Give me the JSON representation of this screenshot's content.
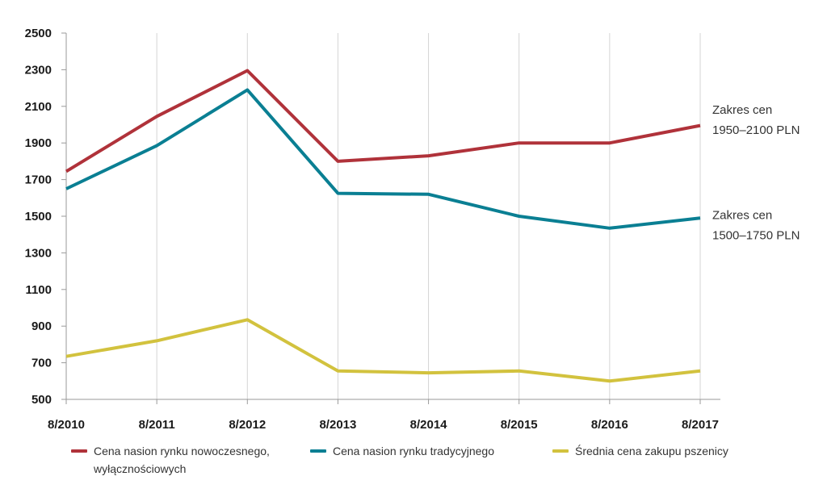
{
  "chart_data": {
    "type": "line",
    "categories": [
      "8/2010",
      "8/2011",
      "8/2012",
      "8/2013",
      "8/2014",
      "8/2015",
      "8/2016",
      "8/2017"
    ],
    "ylim": [
      500,
      2500
    ],
    "yticks": [
      500,
      700,
      900,
      1100,
      1300,
      1500,
      1700,
      1900,
      2100,
      2300,
      2500
    ],
    "ytick_labels": [
      "500",
      "700",
      "900",
      "1100",
      "1300",
      "1500",
      "1700",
      "1900",
      "2100",
      "2300",
      "2500"
    ],
    "grid": "vertical",
    "legend_position": "bottom",
    "series": [
      {
        "name": "Cena nasion rynku nowoczesnego, wyłącznościowych",
        "color": "#b0323a",
        "values": [
          1745,
          2045,
          2295,
          1800,
          1830,
          1900,
          1900,
          1995
        ]
      },
      {
        "name": "Cena nasion rynku tradycyjnego",
        "color": "#0a7f93",
        "values": [
          1650,
          1885,
          2190,
          1625,
          1620,
          1500,
          1435,
          1490
        ]
      },
      {
        "name": "Średnia cena zakupu pszenicy",
        "color": "#d2c23e",
        "values": [
          735,
          820,
          935,
          655,
          645,
          655,
          600,
          655
        ]
      }
    ],
    "annotations": [
      {
        "lines": [
          "Zakres cen",
          "1950–2100 PLN"
        ],
        "y_value": 2025
      },
      {
        "lines": [
          "Zakres cen",
          "1500–1750 PLN"
        ],
        "y_value": 1450
      }
    ],
    "legend_lines": [
      [
        "Cena nasion rynku nowoczesnego,",
        "wyłącznościowych"
      ],
      [
        "Cena nasion rynku tradycyjnego"
      ],
      [
        "Średnia cena zakupu pszenicy"
      ]
    ]
  }
}
